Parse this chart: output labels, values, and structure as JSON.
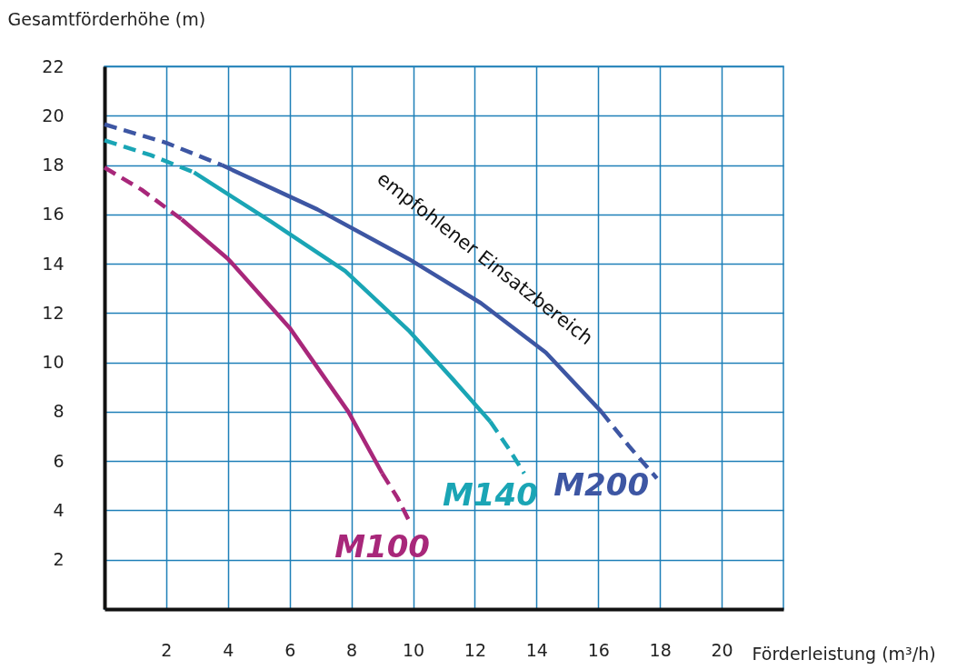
{
  "chart_data": {
    "type": "line",
    "xlabel": "Förderleistung (m³/h)",
    "ylabel": "Gesamtförderhöhe (m)",
    "xlim": [
      0,
      22
    ],
    "xticks": [
      2,
      4,
      6,
      8,
      10,
      12,
      14,
      16,
      18,
      20
    ],
    "ylim": [
      0,
      22
    ],
    "yticks": [
      2,
      4,
      6,
      8,
      10,
      12,
      14,
      16,
      18,
      20,
      22
    ],
    "grid": true,
    "legend": false,
    "marker": "none",
    "annotations": [
      "empfohlener Einsatzbereich"
    ],
    "series": [
      {
        "color": "#a8277a",
        "line_style": "dashed",
        "x": [
          0,
          1.2,
          2.5
        ],
        "values": [
          17.9,
          17.0,
          15.8
        ]
      },
      {
        "name": "M100",
        "color": "#a8277a",
        "line_style": "solid",
        "x": [
          2.5,
          4.0,
          6.0,
          7.9,
          9.0
        ],
        "values": [
          15.8,
          14.2,
          11.4,
          8.0,
          5.5
        ]
      },
      {
        "color": "#a8277a",
        "line_style": "dashed",
        "x": [
          9.0,
          9.5,
          9.9
        ],
        "values": [
          5.5,
          4.5,
          3.5
        ]
      },
      {
        "color": "#1aa5b5",
        "line_style": "dashed",
        "x": [
          0,
          1.5,
          2.9
        ],
        "values": [
          19.0,
          18.4,
          17.7
        ]
      },
      {
        "name": "M140",
        "color": "#1aa5b5",
        "line_style": "solid",
        "x": [
          2.9,
          5.4,
          7.8,
          9.85,
          11.3,
          12.5
        ],
        "values": [
          17.7,
          15.7,
          13.7,
          11.3,
          9.3,
          7.6
        ]
      },
      {
        "color": "#1aa5b5",
        "line_style": "dashed",
        "x": [
          12.5,
          13.1,
          13.6
        ],
        "values": [
          7.6,
          6.5,
          5.5
        ]
      },
      {
        "color": "#3d56a3",
        "line_style": "dashed",
        "x": [
          0,
          2.0,
          3.8
        ],
        "values": [
          19.65,
          18.9,
          18.0
        ]
      },
      {
        "name": "M200",
        "color": "#3d56a3",
        "line_style": "solid",
        "x": [
          3.8,
          6.9,
          9.85,
          12.2,
          14.3,
          16.1
        ],
        "values": [
          18.0,
          16.2,
          14.2,
          12.4,
          10.4,
          8.0
        ]
      },
      {
        "color": "#3d56a3",
        "line_style": "dashed",
        "x": [
          16.1,
          17.0,
          17.9
        ],
        "values": [
          8.0,
          6.6,
          5.3
        ]
      }
    ]
  }
}
